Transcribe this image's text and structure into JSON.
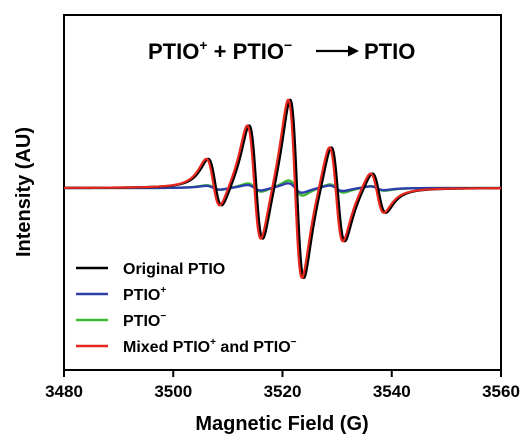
{
  "chart_data": {
    "type": "line",
    "title_parts": {
      "a": "PTIO",
      "a_sup": "+",
      "plus": "+",
      "b": "PTIO",
      "b_sup": "−",
      "product": "PTIO"
    },
    "xlabel": "Magnetic Field (G)",
    "ylabel": "Intensity (AU)",
    "xlim": [
      3480,
      3560
    ],
    "xticks": [
      3480,
      3500,
      3520,
      3540,
      3560
    ],
    "ylim": [
      -1.15,
      1.15
    ],
    "grid": false,
    "legend_position": "bottom-left",
    "line_centers": [
      3507.3,
      3514.8,
      3522.3,
      3529.8,
      3537.3
    ],
    "linewidth_G": 1.3,
    "series": [
      {
        "name": "Original PTIO",
        "color": "#000000",
        "amplitudes": [
          0.26,
          0.62,
          0.95,
          0.52,
          0.22
        ],
        "x_offset": 0.35
      },
      {
        "name_base": "PTIO",
        "name_sup": "+",
        "color": "#2c3ea8",
        "amplitudes": [
          0.02,
          0.03,
          0.05,
          0.03,
          0.02
        ],
        "x_offset": 0
      },
      {
        "name_base": "PTIO",
        "name_sup": "−",
        "color": "#3cb832",
        "amplitudes": [
          0.025,
          0.045,
          0.08,
          0.045,
          0.025
        ],
        "x_offset": 0.1
      },
      {
        "name_base": "Mixed PTIO",
        "name_sup1": "+",
        "name_mid": " and PTIO",
        "name_sup2": "−",
        "color": "#e8281e",
        "amplitudes": [
          0.26,
          0.62,
          0.95,
          0.52,
          0.22
        ],
        "x_offset": 0
      }
    ]
  }
}
